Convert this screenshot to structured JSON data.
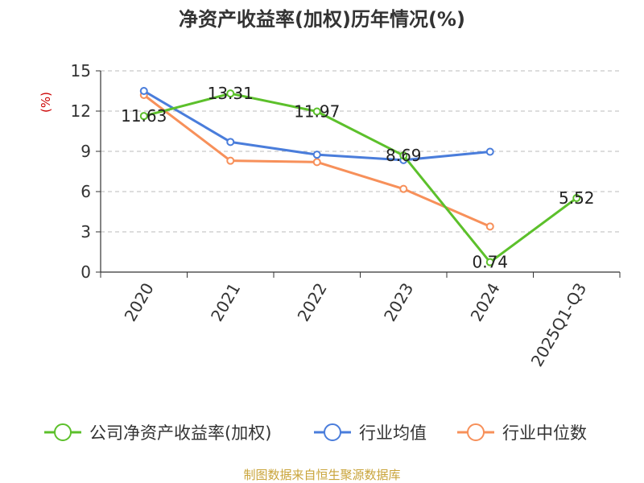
{
  "chart_data": {
    "type": "line",
    "title": "净资产收益率(加权)历年情况(%)",
    "ylabel": "(%)",
    "xlabel": "",
    "categories": [
      "2020",
      "2021",
      "2022",
      "2023",
      "2024",
      "2025Q1-Q3"
    ],
    "ylim": [
      0,
      15
    ],
    "yticks": [
      0,
      3,
      6,
      9,
      12,
      15
    ],
    "grid": true,
    "legend_position": "bottom",
    "series": [
      {
        "name": "公司净资产收益率(加权)",
        "color": "#5cc02b",
        "values": [
          11.63,
          13.31,
          11.97,
          8.69,
          0.74,
          5.52
        ],
        "labels": [
          "11.63",
          "13.31",
          "11.97",
          "8.69",
          "0.74",
          "5.52"
        ]
      },
      {
        "name": "行业均值",
        "color": "#4a7ddb",
        "values": [
          13.5,
          9.7,
          8.75,
          8.35,
          8.97,
          null
        ]
      },
      {
        "name": "行业中位数",
        "color": "#f7905a",
        "values": [
          13.2,
          8.3,
          8.2,
          6.2,
          3.4,
          null
        ]
      }
    ]
  },
  "source": "制图数据来自恒生聚源数据库"
}
